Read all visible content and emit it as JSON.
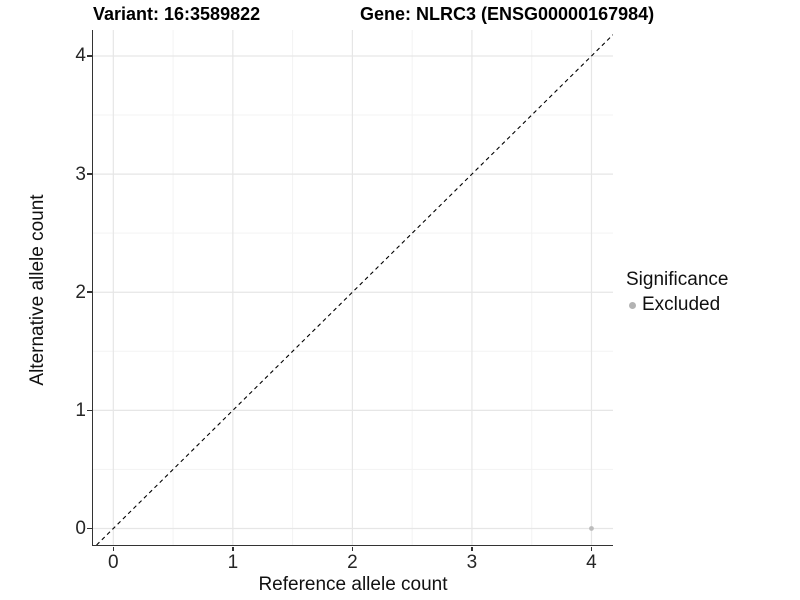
{
  "chart_data": {
    "type": "scatter",
    "title_left": "Variant: 16:3589822",
    "title_right": "Gene: NLRC3 (ENSG00000167984)",
    "xlabel": "Reference allele count",
    "ylabel": "Alternative allele count",
    "xlim": [
      -0.17,
      4.18
    ],
    "ylim": [
      -0.14,
      4.22
    ],
    "xticks": [
      0,
      1,
      2,
      3,
      4
    ],
    "yticks": [
      0,
      1,
      2,
      3,
      4
    ],
    "xticks_minor": [
      0.5,
      1.5,
      2.5,
      3.5
    ],
    "yticks_minor": [
      0.5,
      1.5,
      2.5,
      3.5
    ],
    "grid": {
      "major": "#e6e6e6",
      "minor": "#f3f3f3",
      "show": true
    },
    "axis_color": "#333333",
    "reference_line": {
      "kind": "identity_y_equals_x",
      "style": "dashed",
      "color": "#000000"
    },
    "series": [
      {
        "name": "Excluded",
        "color": "#bcbcbc",
        "points": [
          {
            "x": 4,
            "y": 0
          }
        ]
      }
    ],
    "legend": {
      "title": "Significance",
      "position": "right",
      "entries": [
        {
          "label": "Excluded",
          "color": "#b3b3b3"
        }
      ]
    }
  }
}
